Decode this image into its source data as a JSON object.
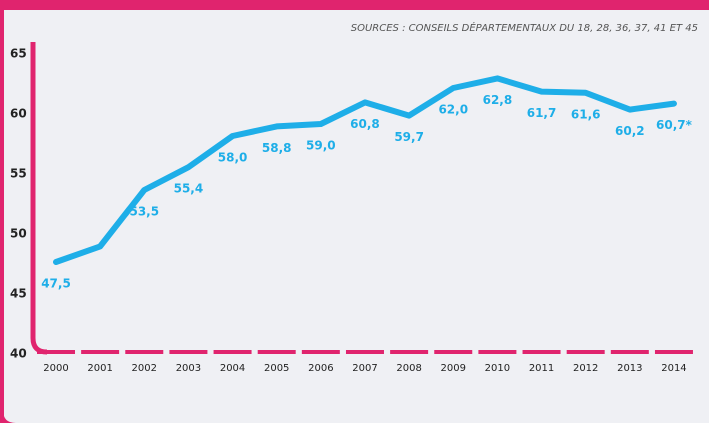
{
  "chart_data": {
    "type": "line",
    "source": "SOURCES : CONSEILS DÉPARTEMENTAUX DU 18, 28, 36, 37, 41 ET 45",
    "categories": [
      "2000",
      "2001",
      "2002",
      "2003",
      "2004",
      "2005",
      "2006",
      "2007",
      "2008",
      "2009",
      "2010",
      "2011",
      "2012",
      "2013",
      "2014"
    ],
    "series": [
      {
        "color": "#1eaee8",
        "values": [
          47.5,
          48.8,
          53.5,
          55.4,
          58.0,
          58.8,
          59.0,
          60.8,
          59.7,
          62.0,
          62.8,
          61.7,
          61.6,
          60.2,
          60.7
        ],
        "value_labels": [
          "47,5",
          null,
          "53,5",
          "55,4",
          "58,0",
          "58,8",
          "59,0",
          "60,8",
          "59,7",
          "62,0",
          "62,8",
          "61,7",
          "61,6",
          "60,2",
          "60,7*"
        ]
      }
    ],
    "ylim": [
      40,
      65
    ],
    "yticks": [
      40,
      45,
      50,
      55,
      60,
      65
    ],
    "axis_color": "#e0246e"
  }
}
